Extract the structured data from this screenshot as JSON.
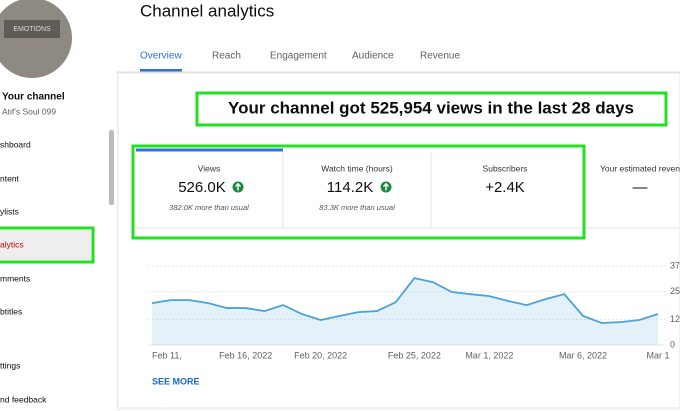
{
  "sidebar": {
    "avatar_text": "EMOTIONS",
    "channel_label": "Your channel",
    "channel_name": "Atif's Soul 099",
    "items": [
      "shboard",
      "ntent",
      "ylists",
      "alytics",
      "mments",
      "btitles",
      "ttings",
      "nd feedback"
    ]
  },
  "header": {
    "title": "Channel analytics",
    "tabs": [
      "Overview",
      "Reach",
      "Engagement",
      "Audience",
      "Revenue"
    ]
  },
  "headline": "Your channel got 525,954 views in the last 28 days",
  "cards": [
    {
      "label": "Views",
      "value": "526.0K",
      "note": "382.0K more than usual"
    },
    {
      "label": "Watch time (hours)",
      "value": "114.2K",
      "note": "83.3K more than usual"
    },
    {
      "label": "Subscribers",
      "value": "+2.4K"
    },
    {
      "label": "Your estimated reven",
      "value": "—"
    }
  ],
  "chart_data": {
    "type": "line",
    "categories": [
      "Feb 11,",
      null,
      null,
      null,
      null,
      "Feb 16, 2022",
      null,
      null,
      null,
      "Feb 20, 2022",
      null,
      null,
      null,
      null,
      "Feb 25, 2022",
      null,
      null,
      null,
      "Mar 1, 2022",
      null,
      null,
      null,
      null,
      "Mar 6, 2022",
      null,
      null,
      null,
      "Mar 1"
    ],
    "values": [
      19.6,
      21,
      21,
      19.6,
      17.3,
      17.3,
      15.9,
      18.7,
      14.5,
      11.7,
      13.6,
      15.4,
      15.9,
      20,
      31.3,
      29.4,
      24.8,
      23.8,
      22.9,
      20.6,
      18.7,
      21.5,
      23.8,
      13.6,
      10.3,
      10.7,
      11.7,
      14.5
    ],
    "color": "#4aa3d8",
    "ylim": [
      0,
      37
    ],
    "yticks": [
      0,
      12,
      25,
      37
    ],
    "grid": true
  },
  "see_more": "SEE MORE"
}
